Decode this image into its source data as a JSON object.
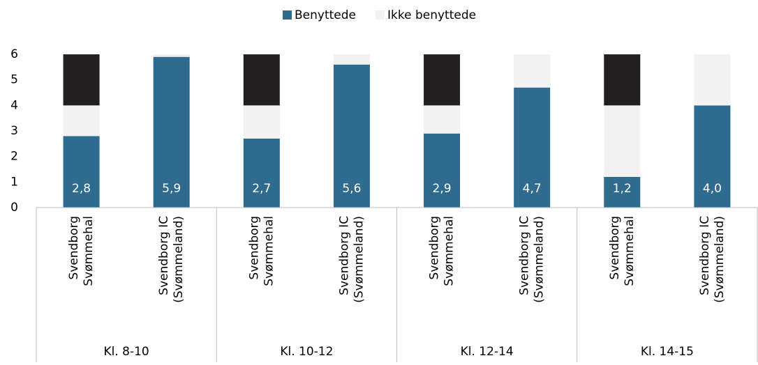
{
  "chart_data": {
    "type": "stacked_bar",
    "groups": [
      "Kl. 8-10",
      "Kl. 10-12",
      "Kl. 12-14",
      "Kl. 14-15"
    ],
    "categories": [
      [
        "Svendborg",
        "Svømmehal"
      ],
      [
        "Svendborg IC",
        "(Svømmeland)"
      ],
      [
        "Svendborg",
        "Svømmehal"
      ],
      [
        "Svendborg IC",
        "(Svømmeland)"
      ],
      [
        "Svendborg",
        "Svømmehal"
      ],
      [
        "Svendborg IC",
        "(Svømmeland)"
      ],
      [
        "Svendborg",
        "Svømmehal"
      ],
      [
        "Svendborg IC",
        "(Svømmeland)"
      ]
    ],
    "series": [
      {
        "name": "Benyttede",
        "color": "#2e6b8f",
        "values": [
          2.8,
          5.9,
          2.7,
          5.6,
          2.9,
          4.7,
          1.2,
          4.0
        ],
        "value_labels": [
          "2,8",
          "5,9",
          "2,7",
          "5,6",
          "2,9",
          "4,7",
          "1,2",
          "4,0"
        ]
      },
      {
        "name": "Ikke benyttede",
        "color": "#f2f2f2",
        "values": [
          1.2,
          0.1,
          1.3,
          0.4,
          1.1,
          1.3,
          2.8,
          2.0
        ]
      },
      {
        "color": "#231f20",
        "values": [
          2,
          0,
          2,
          0,
          2,
          0,
          2,
          0
        ]
      }
    ],
    "ylim": [
      0,
      6
    ],
    "yticks": [
      0,
      1,
      2,
      3,
      4,
      5,
      6
    ],
    "grid": false
  }
}
